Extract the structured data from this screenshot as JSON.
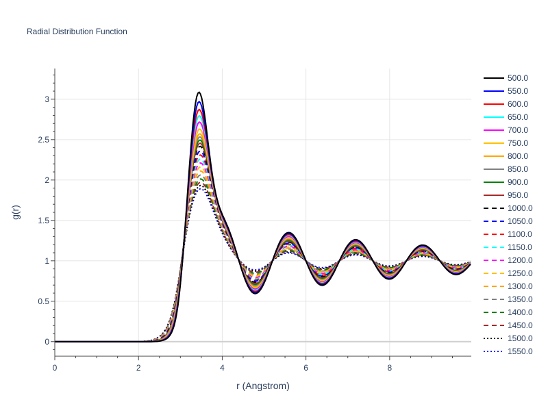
{
  "chart_data": {
    "type": "line",
    "title": "Radial Distribution Function",
    "xlabel": "r (Angstrom)",
    "ylabel": "g(r)",
    "xlim": [
      0,
      9.95
    ],
    "ylim": [
      -0.18,
      3.38
    ],
    "x_ticks": [
      0,
      2,
      4,
      6,
      8
    ],
    "x_tick_labels": [
      "0",
      "2",
      "4",
      "6",
      "8"
    ],
    "y_ticks": [
      0,
      0.5,
      1,
      1.5,
      2,
      2.5,
      3
    ],
    "y_tick_labels": [
      "0",
      "0.5",
      "1",
      "1.5",
      "2",
      "2.5",
      "3"
    ],
    "grid": true,
    "legend_position": "right",
    "series": [
      {
        "name": "500.0",
        "color": "#000000",
        "dash": "solid",
        "peak": 3.19
      },
      {
        "name": "550.0",
        "color": "#0000ff",
        "dash": "solid",
        "peak": 3.06
      },
      {
        "name": "600.0",
        "color": "#ff0000",
        "dash": "solid",
        "peak": 2.95
      },
      {
        "name": "650.0",
        "color": "#00ffff",
        "dash": "solid",
        "peak": 2.86
      },
      {
        "name": "700.0",
        "color": "#ff00ff",
        "dash": "solid",
        "peak": 2.77
      },
      {
        "name": "750.0",
        "color": "#ffc000",
        "dash": "solid",
        "peak": 2.67
      },
      {
        "name": "800.0",
        "color": "#ffa500",
        "dash": "solid",
        "peak": 2.6
      },
      {
        "name": "850.0",
        "color": "#808080",
        "dash": "solid",
        "peak": 2.55
      },
      {
        "name": "900.0",
        "color": "#008000",
        "dash": "solid",
        "peak": 2.5
      },
      {
        "name": "950.0",
        "color": "#a52a2a",
        "dash": "solid",
        "peak": 2.45
      },
      {
        "name": "1000.0",
        "color": "#000000",
        "dash": "dash",
        "peak": 2.4
      },
      {
        "name": "1050.0",
        "color": "#0000ff",
        "dash": "dash",
        "peak": 2.33
      },
      {
        "name": "1100.0",
        "color": "#ff0000",
        "dash": "dash",
        "peak": 2.27
      },
      {
        "name": "1150.0",
        "color": "#00ffff",
        "dash": "dash",
        "peak": 2.21
      },
      {
        "name": "1200.0",
        "color": "#ff00ff",
        "dash": "dash",
        "peak": 2.15
      },
      {
        "name": "1250.0",
        "color": "#ffc000",
        "dash": "dash",
        "peak": 2.09
      },
      {
        "name": "1300.0",
        "color": "#ffa500",
        "dash": "dash",
        "peak": 2.03
      },
      {
        "name": "1350.0",
        "color": "#808080",
        "dash": "dash",
        "peak": 1.97
      },
      {
        "name": "1400.0",
        "color": "#008000",
        "dash": "dash",
        "peak": 1.91
      },
      {
        "name": "1450.0",
        "color": "#a52a2a",
        "dash": "dash",
        "peak": 1.86
      },
      {
        "name": "1500.0",
        "color": "#000000",
        "dash": "dot",
        "peak": 1.81
      },
      {
        "name": "1550.0",
        "color": "#0000ff",
        "dash": "dot",
        "peak": 1.76
      }
    ]
  }
}
